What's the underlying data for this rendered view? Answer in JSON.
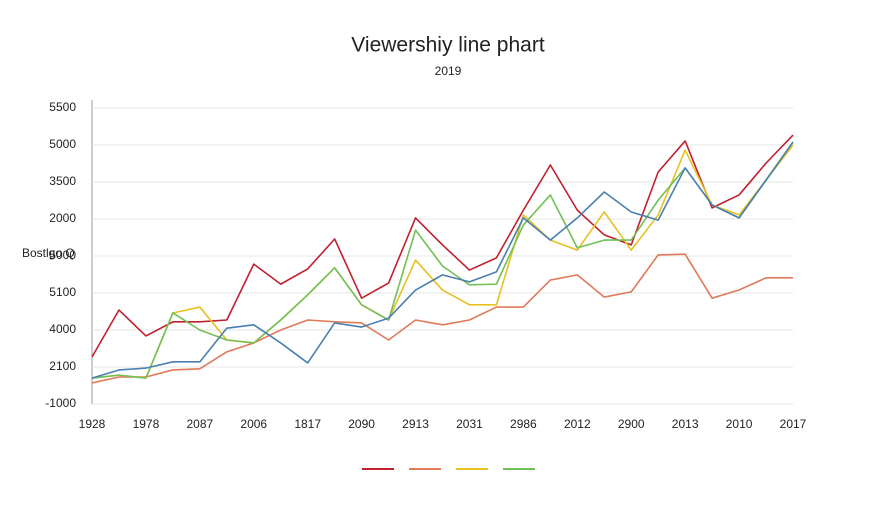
{
  "chart_data": {
    "type": "line",
    "title": "Viewershiy line phart",
    "subtitle": "2019",
    "y_label": "Bostlgo Q",
    "categories": [
      "1928",
      null,
      "1978",
      null,
      "2087",
      null,
      "2006",
      null,
      "1817",
      null,
      "2090",
      null,
      "2913",
      null,
      "2031",
      null,
      "2986",
      null,
      "2012",
      null,
      "2900",
      null,
      "2013",
      null,
      "2010",
      null,
      "2017"
    ],
    "ylim": [
      0,
      8
    ],
    "yticks": [
      {
        "value": 0,
        "label": "-1000"
      },
      {
        "value": 1,
        "label": "2100"
      },
      {
        "value": 2,
        "label": "4000"
      },
      {
        "value": 3,
        "label": "5100"
      },
      {
        "value": 4,
        "label": "5000"
      },
      {
        "value": 5,
        "label": "2000"
      },
      {
        "value": 6,
        "label": "3500"
      },
      {
        "value": 7,
        "label": "5000"
      },
      {
        "value": 8,
        "label": "5500"
      }
    ],
    "grid": true,
    "series": [
      {
        "color": "#c0202e",
        "values": [
          1.27,
          2.54,
          1.84,
          2.22,
          2.22,
          2.27,
          3.78,
          3.24,
          3.65,
          4.46,
          2.86,
          3.27,
          5.03,
          4.3,
          3.62,
          3.95,
          5.24,
          6.46,
          5.24,
          4.57,
          4.3,
          6.27,
          7.11,
          5.3,
          5.65,
          6.51,
          7.27
        ]
      },
      {
        "color": "#e07a5a",
        "values": [
          0.57,
          0.73,
          0.73,
          0.92,
          0.95,
          1.41,
          1.65,
          2.0,
          2.27,
          2.22,
          2.19,
          1.73,
          2.27,
          2.14,
          2.27,
          2.62,
          2.62,
          3.35,
          3.49,
          2.89,
          3.03,
          4.03,
          4.05,
          2.86,
          3.08,
          3.41,
          3.41
        ]
      },
      {
        "color": "#e8c020",
        "values": [
          0.7,
          0.78,
          0.7,
          2.46,
          2.62,
          1.73,
          1.65,
          2.27,
          2.95,
          3.68,
          2.68,
          2.27,
          3.89,
          3.08,
          2.68,
          2.68,
          5.11,
          4.43,
          4.16,
          5.19,
          4.16,
          5.11,
          6.86,
          5.38,
          5.11,
          6.05,
          7.0
        ]
      },
      {
        "color": "#72c055",
        "values": [
          0.7,
          0.78,
          0.7,
          2.46,
          2.0,
          1.73,
          1.65,
          2.27,
          2.95,
          3.68,
          2.68,
          2.27,
          4.7,
          3.73,
          3.22,
          3.24,
          4.84,
          5.65,
          4.22,
          4.43,
          4.43,
          5.51,
          6.38,
          5.38,
          5.03,
          6.05,
          7.08
        ]
      },
      {
        "color": "#4a80b0",
        "values": [
          0.7,
          0.92,
          0.97,
          1.14,
          1.14,
          2.05,
          2.14,
          1.65,
          1.11,
          2.19,
          2.08,
          2.32,
          3.08,
          3.49,
          3.3,
          3.57,
          5.03,
          4.43,
          5.03,
          5.73,
          5.19,
          4.97,
          6.38,
          5.38,
          5.03,
          6.05,
          7.08
        ]
      }
    ]
  }
}
